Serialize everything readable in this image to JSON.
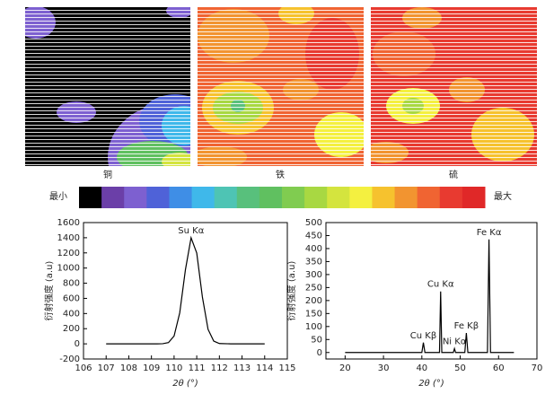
{
  "maps": {
    "labels": [
      "铜",
      "铁",
      "硫"
    ]
  },
  "colorbar": {
    "min_label": "最小",
    "max_label": "最大",
    "colors": [
      "#000000",
      "#6b3fa8",
      "#7d60d0",
      "#4f62d8",
      "#3f8ee6",
      "#3fb8ea",
      "#4ec4b4",
      "#58c07c",
      "#60c060",
      "#80cc50",
      "#a8d842",
      "#d4e43e",
      "#f4f040",
      "#f6c22e",
      "#f29430",
      "#f06432",
      "#e83a30",
      "#e02828"
    ]
  },
  "chart_data": [
    {
      "type": "line",
      "xlabel": "2θ (°)",
      "ylabel": "衍射强度 (a.u)",
      "x": [
        107,
        107.5,
        108,
        108.5,
        109,
        109.25,
        109.5,
        109.75,
        110,
        110.25,
        110.5,
        110.75,
        111,
        111.25,
        111.5,
        111.75,
        112,
        112.5,
        113,
        113.5,
        114
      ],
      "values": [
        0,
        0,
        0,
        0,
        0,
        0,
        2,
        16,
        104,
        410,
        977,
        1400,
        1198,
        617,
        191,
        36,
        4,
        0,
        0,
        0,
        0
      ],
      "peak_labels": [
        "Su Kα"
      ],
      "color": "#000000",
      "xlim": [
        106,
        115
      ],
      "xticks": [
        106,
        107,
        108,
        109,
        110,
        111,
        112,
        113,
        114,
        115
      ],
      "ylim": [
        -200,
        1600
      ],
      "yticks": [
        -200,
        0,
        200,
        400,
        600,
        800,
        1000,
        1200,
        1400,
        1600
      ]
    },
    {
      "type": "line",
      "xlabel": "2θ (°)",
      "ylabel": "衍射强度 (a.u)",
      "x": [
        20,
        40,
        40.4,
        40.8,
        44.6,
        44.9,
        45.2,
        48.2,
        48.5,
        48.8,
        51.2,
        51.6,
        52,
        57.1,
        57.5,
        57.9,
        64
      ],
      "values": [
        0,
        0,
        38,
        0,
        0,
        235,
        0,
        0,
        15,
        0,
        0,
        75,
        0,
        0,
        435,
        0,
        0
      ],
      "peak_labels": [
        "Cu Kβ",
        "Cu Kα",
        "Ni Kα",
        "Fe Kβ",
        "Fe Kα"
      ],
      "color": "#000000",
      "xlim": [
        15,
        70
      ],
      "xticks": [
        20,
        30,
        40,
        50,
        60,
        70
      ],
      "ylim": [
        -25,
        500
      ],
      "yticks": [
        0,
        50,
        100,
        150,
        200,
        250,
        300,
        350,
        400,
        450,
        500
      ]
    }
  ]
}
